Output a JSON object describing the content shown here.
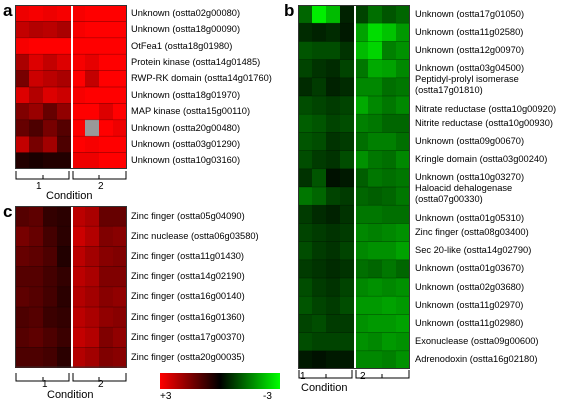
{
  "panels": {
    "a": {
      "letter": "a",
      "condition_label": "Condition",
      "condition_ticks": [
        "1",
        "2"
      ],
      "genes": [
        "Unknown (ostta02g00080)",
        "Unknown (ostta18g00090)",
        "OtFea1 (ostta18g01980)",
        "Protein kinase (ostta14g01485)",
        "RWP-RK domain (ostta14g01760)",
        "Unknown (ostta18g01970)",
        "MAP kinase (ostta15g00110)",
        "Unknown (ostta20g00480)",
        "Unknown (ostta03g01290)",
        "Unknown (ostta10g03160)"
      ],
      "values": [
        [
          2.8,
          2.9,
          2.8,
          2.9,
          2.9,
          3.0,
          3.0,
          3.0
        ],
        [
          2.3,
          2.1,
          2.2,
          2.0,
          2.9,
          3.0,
          3.0,
          3.0
        ],
        [
          2.9,
          3.0,
          3.0,
          3.0,
          3.0,
          3.0,
          3.0,
          3.0
        ],
        [
          2.0,
          2.6,
          2.3,
          2.6,
          2.9,
          2.7,
          3.0,
          3.0
        ],
        [
          1.4,
          2.4,
          2.2,
          2.0,
          3.0,
          2.3,
          3.0,
          3.0
        ],
        [
          2.6,
          2.1,
          2.6,
          2.4,
          2.9,
          3.0,
          3.0,
          3.0
        ],
        [
          1.5,
          1.8,
          1.2,
          1.7,
          3.0,
          3.0,
          2.6,
          3.0
        ],
        [
          1.2,
          0.9,
          1.4,
          1.0,
          3.0,
          null,
          3.0,
          2.8
        ],
        [
          2.3,
          1.4,
          1.9,
          0.9,
          3.0,
          2.9,
          3.0,
          3.0
        ],
        [
          0.4,
          0.3,
          0.4,
          0.4,
          2.8,
          2.8,
          3.0,
          3.0
        ]
      ]
    },
    "b": {
      "letter": "b",
      "condition_label": "Condition",
      "condition_ticks": [
        "1",
        "2"
      ],
      "genes": [
        "Unknown (ostta17g01050)",
        "Unknown (ostta11g02580)",
        "Unknown (ostta12g00970)",
        "Unknown (ostta03g04500)",
        "Peptidyl-prolyl isomerase (ostta17g01810)",
        "Nitrate reductase (ostta10g00920)",
        "Nitrite reductase (ostta10g00930)",
        "Unknown (ostta09g00670)",
        "Kringle domain (ostta03g00240)",
        "Unknown (ostta10g03270)",
        "Haloacid dehalogenase (ostta07g00330)",
        "Unknown (ostta01g05310)",
        "Zinc finger (ostta08g03400)",
        "Sec 20-like (ostta14g02790)",
        "Unknown (ostta01g03670)",
        "Unknown (ostta02g03680)",
        "Unknown (ostta11g02970)",
        "Unknown (ostta11g02980)",
        "Exonuclease (ostta09g00600)",
        "Adrenodoxin (ostta16g02180)"
      ],
      "values": [
        [
          -1.2,
          -2.8,
          -2.2,
          -0.4,
          -0.8,
          -1.3,
          -1.0,
          -1.2
        ],
        [
          -0.5,
          -0.4,
          -0.5,
          -0.3,
          -1.9,
          -2.6,
          -2.3,
          -1.8
        ],
        [
          -1.0,
          -0.9,
          -0.9,
          -0.6,
          -2.2,
          -2.5,
          -1.5,
          -1.7
        ],
        [
          -0.8,
          -0.6,
          -0.5,
          -0.8,
          -1.4,
          -2.0,
          -1.9,
          -1.6
        ],
        [
          -0.5,
          -0.7,
          -0.4,
          -0.5,
          -1.6,
          -1.6,
          -1.3,
          -1.4
        ],
        [
          -0.9,
          -0.8,
          -0.7,
          -0.8,
          -2.0,
          -1.6,
          -1.4,
          -1.6
        ],
        [
          -1.1,
          -1.0,
          -0.8,
          -0.9,
          -1.5,
          -1.4,
          -1.2,
          -1.2
        ],
        [
          -1.0,
          -0.9,
          -0.6,
          -0.7,
          -1.3,
          -1.5,
          -1.5,
          -1.3
        ],
        [
          -0.9,
          -0.7,
          -0.6,
          -0.9,
          -1.7,
          -1.4,
          -1.3,
          -1.6
        ],
        [
          -0.6,
          -1.0,
          -0.2,
          -0.3,
          -1.1,
          -1.4,
          -1.3,
          -1.4
        ],
        [
          -1.4,
          -1.2,
          -0.8,
          -0.7,
          -1.2,
          -1.1,
          -1.2,
          -1.4
        ],
        [
          -0.7,
          -0.5,
          -0.4,
          -0.6,
          -1.4,
          -1.4,
          -1.3,
          -1.3
        ],
        [
          -0.8,
          -0.7,
          -0.6,
          -0.7,
          -1.6,
          -1.5,
          -1.6,
          -1.7
        ],
        [
          -0.9,
          -0.7,
          -0.6,
          -0.8,
          -1.6,
          -1.7,
          -1.7,
          -1.9
        ],
        [
          -0.7,
          -0.6,
          -0.5,
          -0.6,
          -1.3,
          -1.2,
          -1.4,
          -1.2
        ],
        [
          -0.9,
          -0.7,
          -0.6,
          -0.8,
          -1.6,
          -1.7,
          -1.6,
          -1.7
        ],
        [
          -1.0,
          -0.8,
          -0.7,
          -0.9,
          -1.8,
          -1.8,
          -1.9,
          -1.8
        ],
        [
          -0.8,
          -0.9,
          -0.7,
          -0.7,
          -1.7,
          -1.8,
          -1.8,
          -1.9
        ],
        [
          -0.9,
          -0.8,
          -0.8,
          -0.8,
          -1.7,
          -1.6,
          -1.8,
          -1.7
        ],
        [
          -0.3,
          -0.2,
          -0.3,
          -0.3,
          -1.6,
          -1.6,
          -1.5,
          -1.7
        ]
      ]
    },
    "c": {
      "letter": "c",
      "condition_label": "Condition",
      "condition_ticks": [
        "1",
        "2"
      ],
      "genes": [
        "Zinc finger (ostta05g04090)",
        "Zinc nuclease (ostta06g03580)",
        "Zinc finger (ostta11g01430)",
        "Zinc finger (ostta14g02190)",
        "Zinc finger (ostta16g00140)",
        "Zinc finger (ostta16g01360)",
        "Zinc finger (ostta17g00370)",
        "Zinc finger (ostta20g00035)"
      ],
      "values": [
        [
          1.0,
          1.1,
          0.6,
          0.5,
          2.2,
          2.0,
          1.2,
          1.2
        ],
        [
          1.4,
          1.2,
          0.8,
          0.5,
          2.4,
          2.1,
          1.5,
          1.6
        ],
        [
          1.2,
          1.1,
          0.9,
          0.4,
          2.2,
          1.9,
          1.6,
          1.5
        ],
        [
          1.0,
          1.0,
          0.8,
          0.6,
          2.2,
          2.0,
          1.5,
          1.5
        ],
        [
          1.1,
          1.0,
          0.8,
          0.5,
          2.1,
          1.9,
          1.6,
          1.7
        ],
        [
          0.9,
          1.0,
          0.7,
          0.6,
          2.2,
          2.0,
          1.7,
          1.6
        ],
        [
          1.0,
          1.1,
          0.9,
          0.7,
          2.3,
          2.1,
          1.5,
          1.7
        ],
        [
          0.9,
          0.9,
          0.8,
          0.5,
          2.1,
          1.9,
          1.5,
          1.6
        ]
      ]
    }
  },
  "legend": {
    "min_label": "+3",
    "max_label": "-3",
    "high_color": "#ff0000",
    "low_color": "#00ff00",
    "mid_color": "#000000",
    "missing_color": "#999999"
  }
}
